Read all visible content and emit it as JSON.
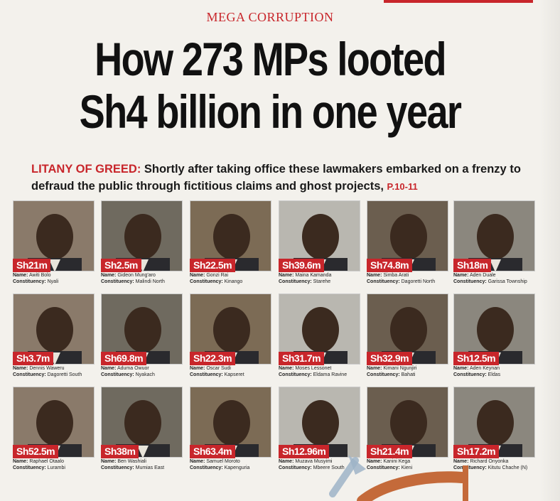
{
  "kicker": "MEGA CORRUPTION",
  "headline": {
    "line1": "How 273 MPs looted",
    "line2": "Sh4 billion in one year"
  },
  "deck": {
    "lead": "LITANY OF GREED:",
    "text": " Shortly after taking office these lawmakers embarked on a frenzy to defraud the public through fictitious claims and ghost projects, ",
    "page_ref": "P.10-11"
  },
  "labels": {
    "name": "Name:",
    "constituency": "Constituency:"
  },
  "mps": [
    {
      "amount": "Sh21m",
      "name": "Awiti Bolo",
      "constituency": "Nyali"
    },
    {
      "amount": "Sh2.5m",
      "name": "Gideon Mung'aro",
      "constituency": "Malindi North"
    },
    {
      "amount": "Sh22.5m",
      "name": "Gonzi Rai",
      "constituency": "Kinango"
    },
    {
      "amount": "Sh39.6m",
      "name": "Maina Kamanda",
      "constituency": "Starehe"
    },
    {
      "amount": "Sh74.8m",
      "name": "Simba Arati",
      "constituency": "Dagoretti North"
    },
    {
      "amount": "Sh18m",
      "name": "Aden Duale",
      "constituency": "Garissa Township"
    },
    {
      "amount": "Sh3.7m",
      "name": "Dennis Waweru",
      "constituency": "Dagoretti South"
    },
    {
      "amount": "Sh69.8m",
      "name": "Aduma Owuor",
      "constituency": "Nyakach"
    },
    {
      "amount": "Sh22.3m",
      "name": "Oscar Sudi",
      "constituency": "Kapseret"
    },
    {
      "amount": "Sh31.7m",
      "name": "Moses Lessonet",
      "constituency": "Eldama Ravine"
    },
    {
      "amount": "Sh32.9m",
      "name": "Kimani Ngunjiri",
      "constituency": "Bahati"
    },
    {
      "amount": "Sh12.5m",
      "name": "Aden Keynan",
      "constituency": "Eldas"
    },
    {
      "amount": "Sh52.5m",
      "name": "Raphael Otaalo",
      "constituency": "Lurambi"
    },
    {
      "amount": "Sh38m",
      "name": "Ben Washiali",
      "constituency": "Mumias East"
    },
    {
      "amount": "Sh63.4m",
      "name": "Samuel Moroto",
      "constituency": "Kapenguria"
    },
    {
      "amount": "Sh12.96m",
      "name": "Muzava Musyimi",
      "constituency": "Mbeere South"
    },
    {
      "amount": "Sh21.4m",
      "name": "Kanini Kega",
      "constituency": "Kieni"
    },
    {
      "amount": "Sh17.2m",
      "name": "Richard Onyonka",
      "constituency": "Kitutu Chache (N)"
    }
  ],
  "colors": {
    "accent_red": "#c8262b",
    "paper": "#f3f1ec",
    "text": "#111111",
    "overlay_arrow": "#c46a3a"
  }
}
